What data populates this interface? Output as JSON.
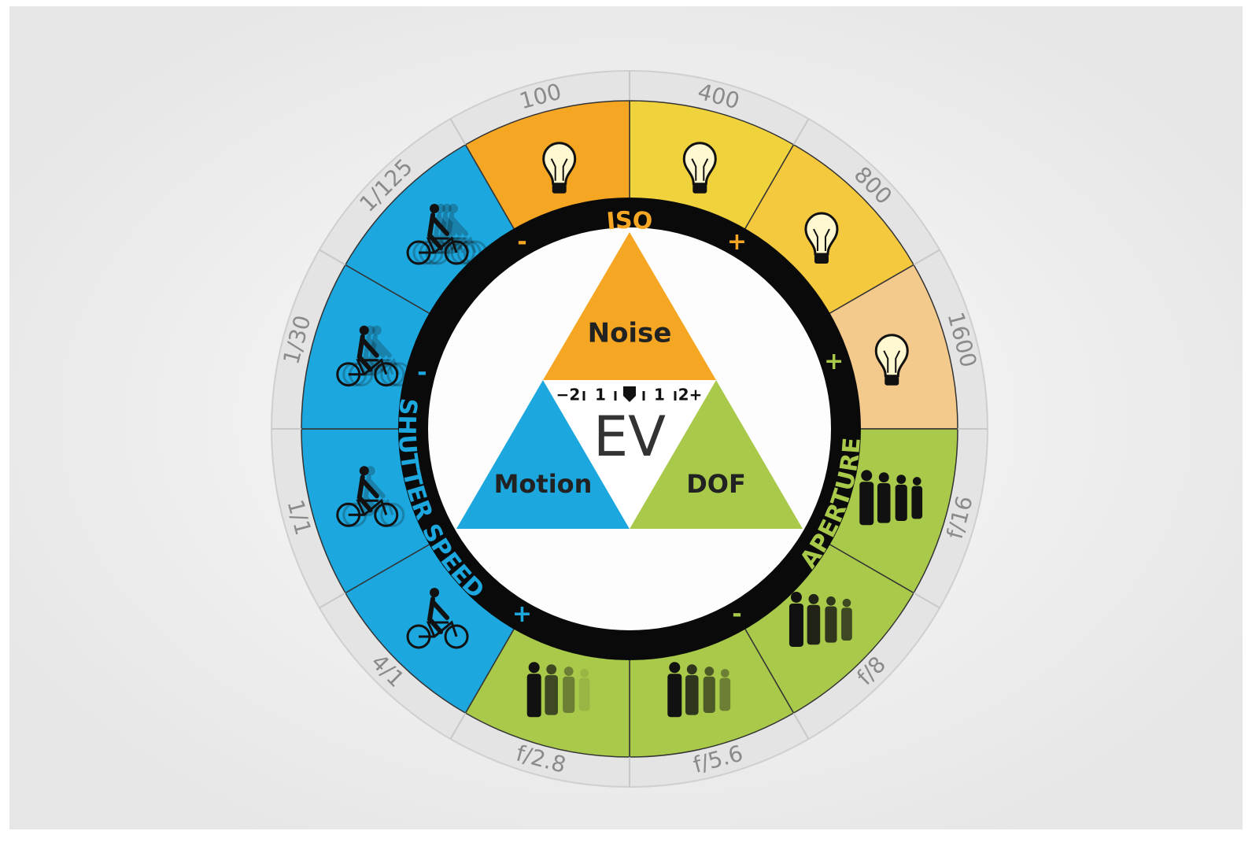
{
  "ring_labels": [
    "400",
    "800",
    "1600",
    "f/16",
    "f/8",
    "f/5.6",
    "f/2.8",
    "4/1",
    "1/1",
    "1/30",
    "1/125",
    "100"
  ],
  "ring_titles": {
    "iso": "ISO",
    "shutter": "SHUTTER SPEED",
    "aperture": "APERTURE"
  },
  "signs": [
    "-",
    "+",
    "-",
    "+",
    "+",
    "-"
  ],
  "triangle": {
    "top": "Noise",
    "left": "Motion",
    "right": "DOF",
    "center": "EV"
  },
  "ev_scale": [
    "−2",
    "1",
    "1",
    "2+"
  ]
}
